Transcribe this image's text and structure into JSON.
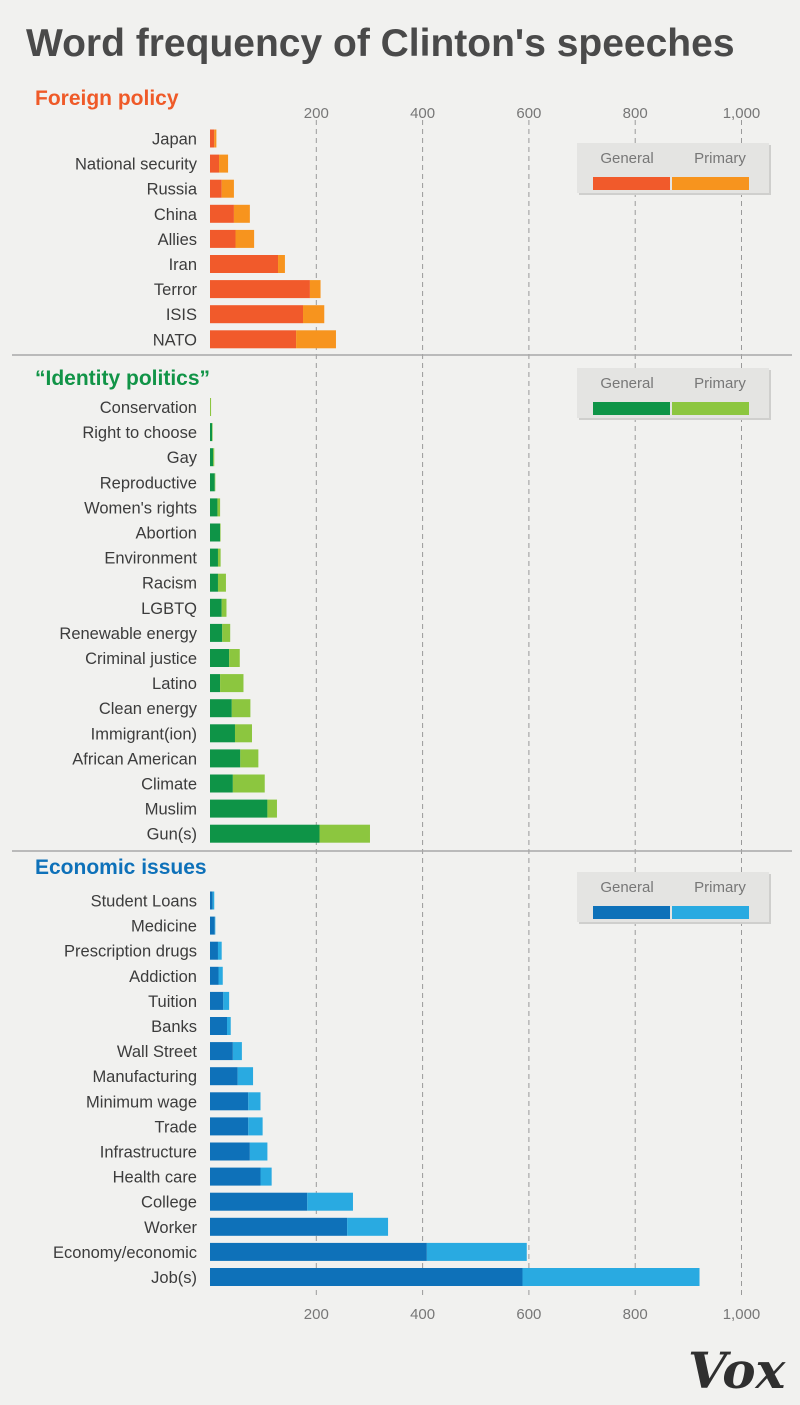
{
  "title": "Word frequency of Clinton's speeches",
  "logo": "Vox",
  "legend": {
    "general": "General",
    "primary": "Primary"
  },
  "chart_data": {
    "type": "bar",
    "orientation": "horizontal",
    "stacked": true,
    "title": "Word frequency of Clinton's speeches",
    "xlim": [
      0,
      1100
    ],
    "xticks": [
      {
        "value": 200,
        "label": "200"
      },
      {
        "value": 400,
        "label": "400"
      },
      {
        "value": 600,
        "label": "600"
      },
      {
        "value": 800,
        "label": "800"
      },
      {
        "value": 1000,
        "label": "1,000"
      }
    ],
    "grid": "vertical dashed",
    "legend_position": "top-right of each panel",
    "series_names": [
      "General",
      "Primary"
    ],
    "panels": [
      {
        "title": "Foreign policy",
        "colors": {
          "title": "#ef5a28",
          "general": "#f15a2b",
          "primary": "#f7941e"
        },
        "categories": [
          "Japan",
          "National security",
          "Russia",
          "China",
          "Allies",
          "Iran",
          "Terror",
          "ISIS",
          "NATO"
        ],
        "series": [
          {
            "name": "General",
            "values": [
              8,
              17,
              22,
              45,
              48,
              128,
              188,
              175,
              162
            ]
          },
          {
            "name": "Primary",
            "values": [
              4,
              17,
              23,
              30,
              35,
              13,
              20,
              40,
              75
            ]
          }
        ]
      },
      {
        "title": "“Identity politics”",
        "colors": {
          "title": "#119447",
          "general": "#0e9447",
          "primary": "#8cc63f"
        },
        "categories": [
          "Conservation",
          "Right to choose",
          "Gay",
          "Reproductive",
          "Women's rights",
          "Abortion",
          "Environment",
          "Racism",
          "LGBTQ",
          "Renewable energy",
          "Criminal justice",
          "Latino",
          "Clean energy",
          "Immigrant(ion)",
          "African American",
          "Climate",
          "Muslim",
          "Gun(s)"
        ],
        "series": [
          {
            "name": "General",
            "values": [
              0,
              4,
              6,
              9,
              14,
              19,
              15,
              15,
              22,
              23,
              36,
              19,
              41,
              47,
              57,
              43,
              108,
              206
            ]
          },
          {
            "name": "Primary",
            "values": [
              2,
              1,
              2,
              1,
              5,
              1,
              5,
              15,
              9,
              15,
              20,
              44,
              35,
              32,
              34,
              60,
              18,
              95
            ]
          }
        ]
      },
      {
        "title": "Economic issues",
        "colors": {
          "title": "#0e71b9",
          "general": "#0e71b9",
          "primary": "#29aae1"
        },
        "categories": [
          "Student Loans",
          "Medicine",
          "Prescription drugs",
          "Addiction",
          "Tuition",
          "Banks",
          "Wall Street",
          "Manufacturing",
          "Minimum wage",
          "Trade",
          "Infrastructure",
          "Health care",
          "College",
          "Worker",
          "Economy/economic",
          "Job(s)"
        ],
        "series": [
          {
            "name": "General",
            "values": [
              5,
              9,
              15,
              16,
              25,
              32,
              43,
              52,
              72,
              72,
              75,
              95,
              183,
              258,
              408,
              588
            ]
          },
          {
            "name": "Primary",
            "values": [
              3,
              1,
              7,
              8,
              11,
              7,
              17,
              29,
              23,
              27,
              33,
              21,
              86,
              77,
              188,
              333
            ]
          }
        ]
      }
    ]
  }
}
